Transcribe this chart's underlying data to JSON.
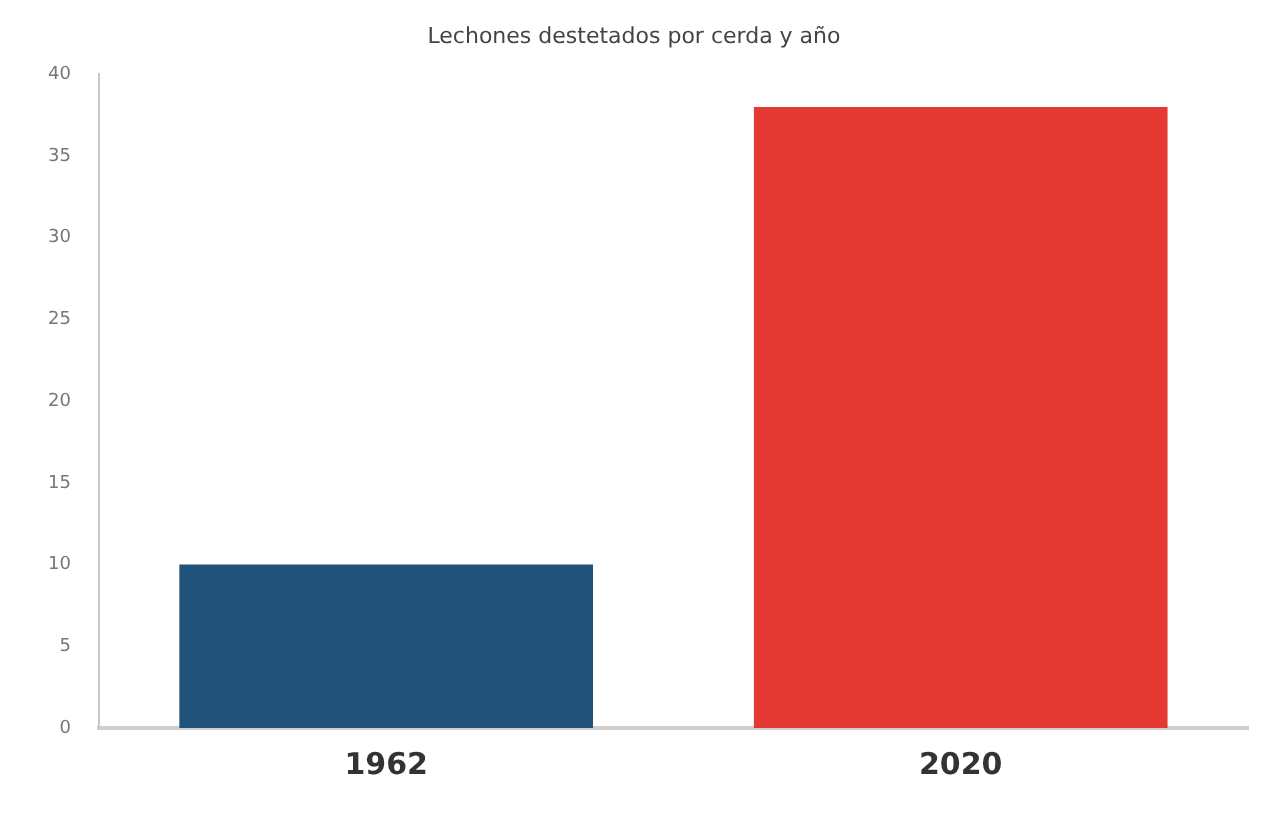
{
  "chart_data": {
    "type": "bar",
    "title": "Lechones destetados por cerda y año",
    "categories": [
      "1962",
      "2020"
    ],
    "values": [
      10,
      38
    ],
    "colors": [
      "#20527a",
      "#e43a33"
    ],
    "ylim": [
      0,
      40
    ],
    "yticks": [
      0,
      5,
      10,
      15,
      20,
      25,
      30,
      35,
      40
    ],
    "grid": false,
    "legend": false
  }
}
